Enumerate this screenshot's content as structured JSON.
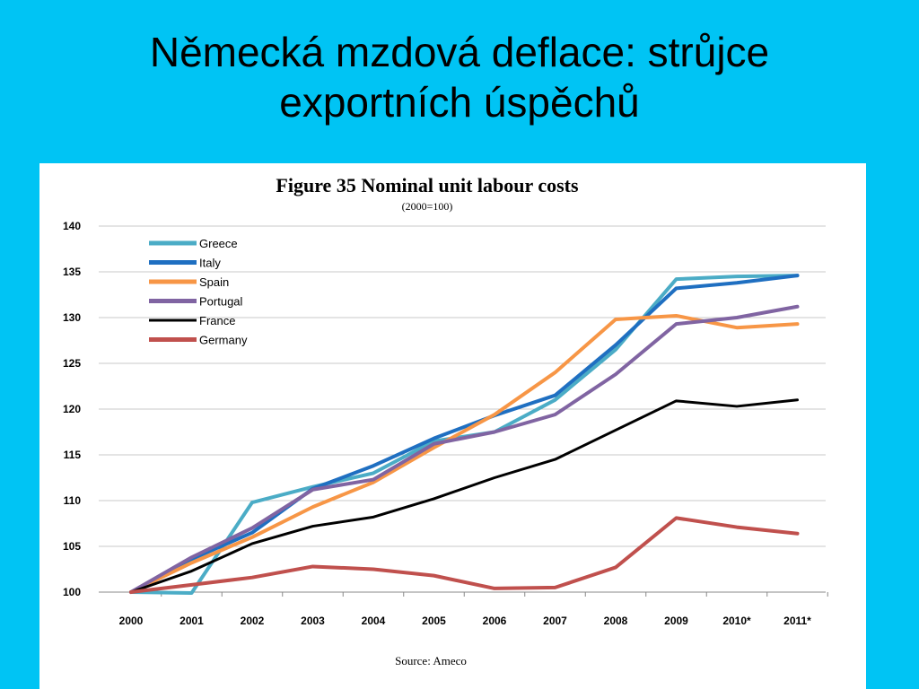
{
  "slide": {
    "title_line1": "Německá mzdová deflace: strůjce",
    "title_line2": "exportních úspěchů"
  },
  "chart_data": {
    "type": "line",
    "title": "Figure 35  Nominal unit labour costs",
    "subtitle": "(2000=100)",
    "source": "Source: Ameco",
    "x": [
      "2000",
      "2001",
      "2002",
      "2003",
      "2004",
      "2005",
      "2006",
      "2007",
      "2008",
      "2009",
      "2010*",
      "2011*"
    ],
    "ylim": [
      100,
      140
    ],
    "yticks": [
      100,
      105,
      110,
      115,
      120,
      125,
      130,
      135,
      140
    ],
    "grid": true,
    "legend_position": "top-left",
    "series": [
      {
        "name": "Greece",
        "color": "#4bacc6",
        "values": [
          100,
          99.9,
          109.8,
          111.5,
          113,
          116.5,
          117.5,
          121,
          126.5,
          134.2,
          134.5,
          134.6
        ]
      },
      {
        "name": "Italy",
        "color": "#1f6fc1",
        "values": [
          100,
          103.6,
          106.5,
          111.3,
          113.8,
          116.8,
          119.3,
          121.5,
          127,
          133.2,
          133.8,
          134.6
        ]
      },
      {
        "name": "Spain",
        "color": "#f79646",
        "values": [
          100,
          103.2,
          106,
          109.3,
          112,
          115.8,
          119.4,
          124,
          129.8,
          130.2,
          128.9,
          129.3
        ]
      },
      {
        "name": "Portugal",
        "color": "#8064a2",
        "values": [
          100,
          103.8,
          107,
          111.2,
          112.3,
          116.2,
          117.5,
          119.4,
          123.8,
          129.3,
          130,
          131.2
        ]
      },
      {
        "name": "France",
        "color": "#000000",
        "values": [
          100,
          102.3,
          105.3,
          107.2,
          108.2,
          110.2,
          112.5,
          114.5,
          117.7,
          120.9,
          120.3,
          121
        ]
      },
      {
        "name": "Germany",
        "color": "#c0504d",
        "values": [
          100,
          100.8,
          101.6,
          102.8,
          102.5,
          101.8,
          100.4,
          100.5,
          102.7,
          108.1,
          107.1,
          106.4
        ]
      }
    ]
  }
}
